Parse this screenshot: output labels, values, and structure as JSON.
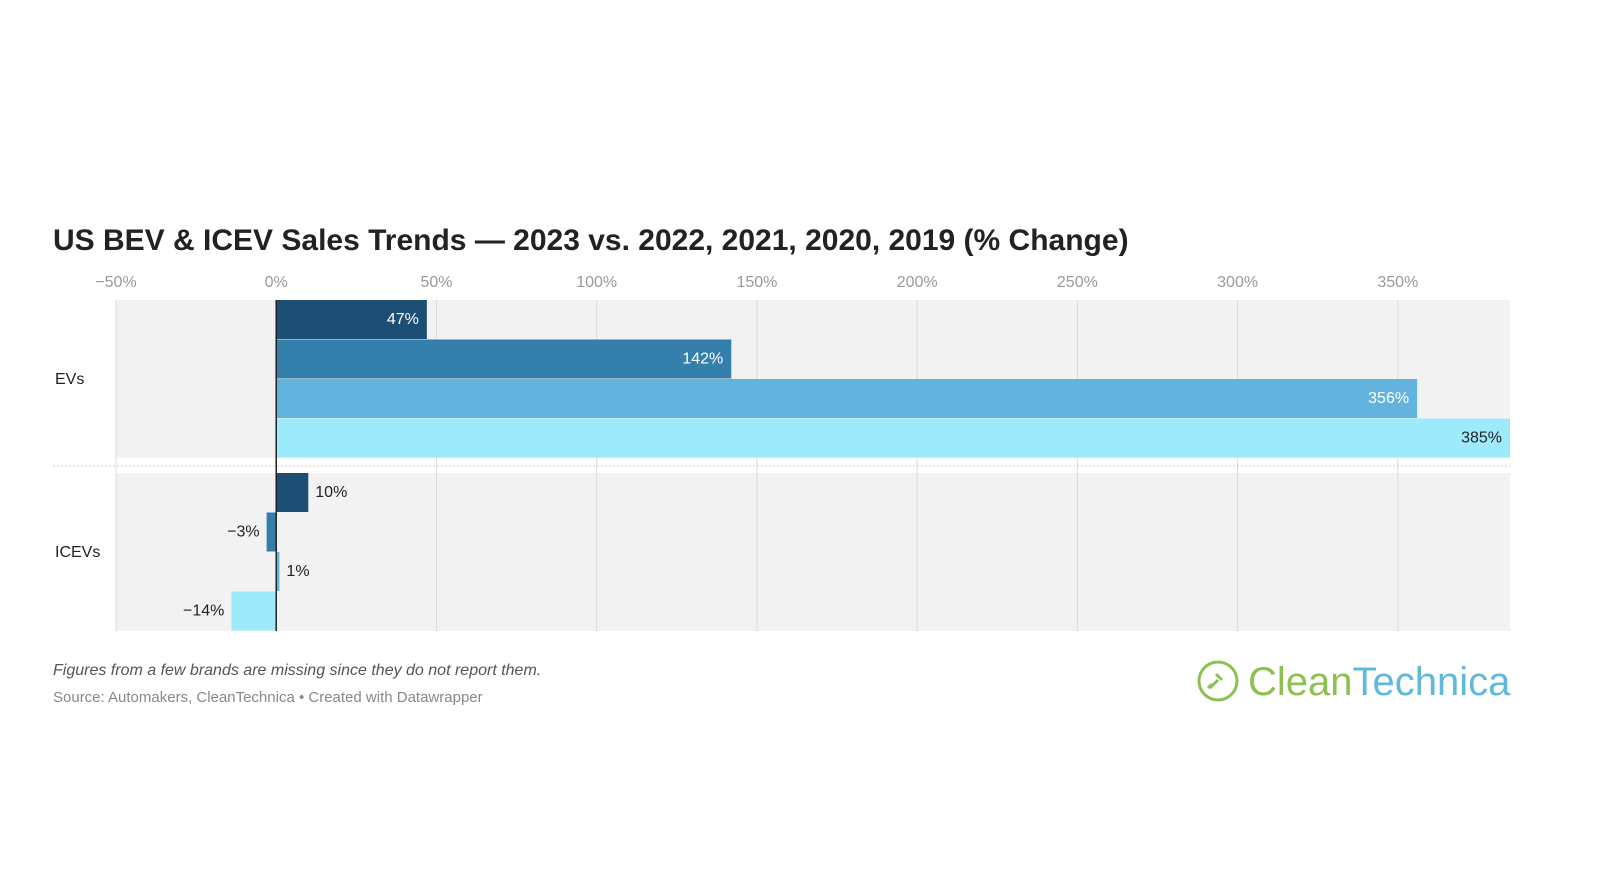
{
  "chart_data": {
    "type": "bar",
    "title": "US BEV & ICEV Sales Trends — 2023 vs. 2022, 2021, 2020, 2019 (% Change)",
    "categories": [
      "EVs",
      "ICEVs"
    ],
    "series": [
      {
        "color": "#1d4e74",
        "values": [
          47,
          10
        ],
        "value_labels": [
          "47%",
          "10%"
        ]
      },
      {
        "color": "#347fab",
        "values": [
          142,
          -3
        ],
        "value_labels": [
          "142%",
          "−3%"
        ]
      },
      {
        "color": "#62b3de",
        "values": [
          356,
          1
        ],
        "value_labels": [
          "356%",
          "1%"
        ]
      },
      {
        "color": "#9deafb",
        "values": [
          385,
          -14
        ],
        "value_labels": [
          "385%",
          "−14%"
        ]
      }
    ],
    "xlim": [
      -50,
      385
    ],
    "xticks": [
      {
        "value": -50,
        "label": "−50%"
      },
      {
        "value": 0,
        "label": "0%"
      },
      {
        "value": 50,
        "label": "50%"
      },
      {
        "value": 100,
        "label": "100%"
      },
      {
        "value": 150,
        "label": "150%"
      },
      {
        "value": 200,
        "label": "200%"
      },
      {
        "value": 250,
        "label": "250%"
      },
      {
        "value": 300,
        "label": "300%"
      },
      {
        "value": 350,
        "label": "350%"
      }
    ],
    "grid": true,
    "note": "Figures from a few brands are missing since they do not report them.",
    "source": "Source: Automakers, CleanTechnica • Created with Datawrapper",
    "logo": [
      "Clean",
      "Technica"
    ]
  }
}
